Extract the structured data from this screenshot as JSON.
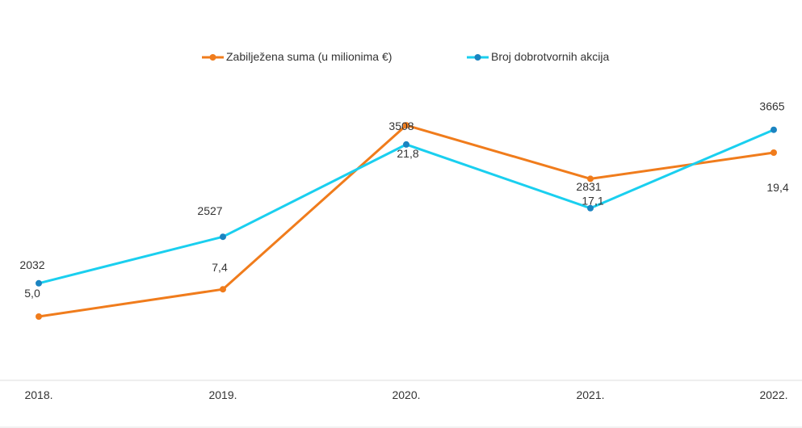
{
  "colors": {
    "suma": "#F07C1C",
    "akcije_line": "#1ACFEF",
    "akcije_marker": "#1B84C1",
    "axis": "#DDDDDD",
    "text": "#333333",
    "background": "#FFFFFF"
  },
  "chart_data": {
    "type": "line",
    "categories": [
      "2018.",
      "2019.",
      "2020.",
      "2021.",
      "2022."
    ],
    "legend_position": "top-center",
    "grid": false,
    "series": [
      {
        "name": "Zabilježena suma (u milionima €)",
        "key": "suma",
        "values": [
          5.0,
          7.4,
          21.8,
          17.1,
          19.4
        ],
        "labels": [
          "5,0",
          "7,4",
          "21,8",
          "17,1",
          "19,4"
        ],
        "ylim": [
          -0.6,
          25.0
        ]
      },
      {
        "name": "Broj dobrotvornih akcija",
        "key": "akcije",
        "values": [
          2032,
          2527,
          3508,
          2831,
          3665
        ],
        "labels": [
          "2032",
          "2527",
          "3508",
          "2831",
          "3665"
        ],
        "ylim": [
          1000,
          4100
        ]
      }
    ]
  }
}
